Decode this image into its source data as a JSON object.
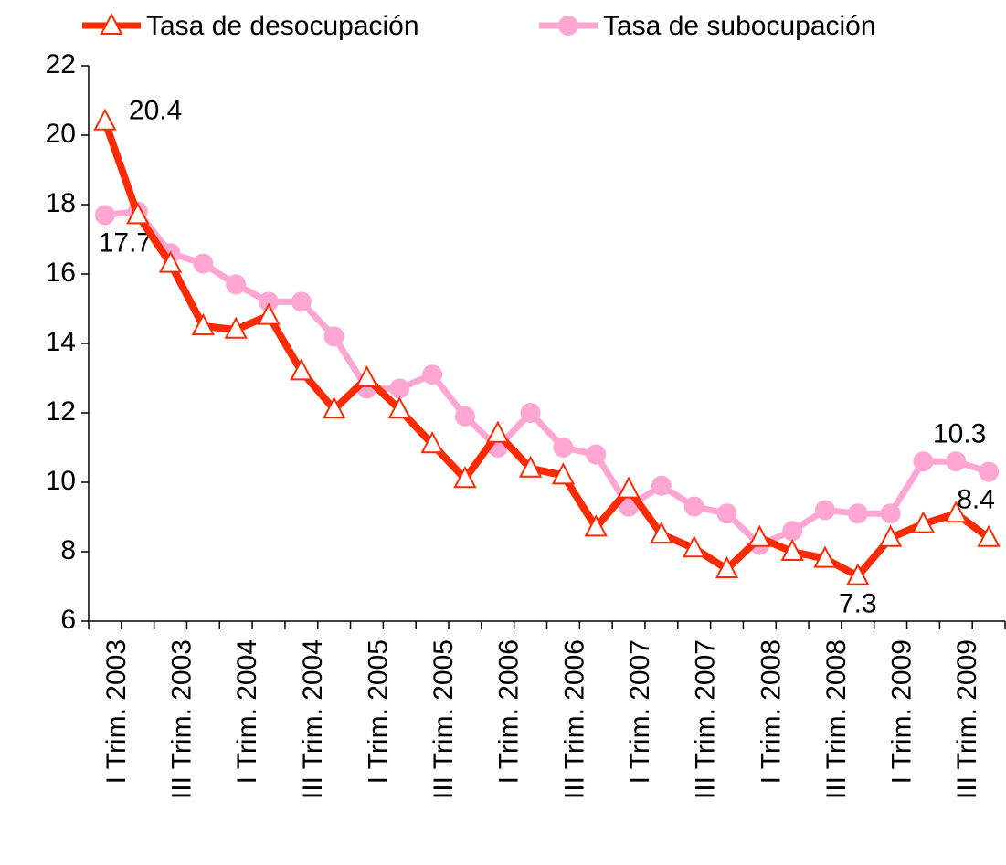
{
  "chart_data": {
    "type": "line",
    "categories": [
      "I Trim. 2003",
      null,
      "III Trim. 2003",
      null,
      "I Trim. 2004",
      null,
      "III Trim. 2004",
      null,
      "I Trim. 2005",
      null,
      "III Trim. 2005",
      null,
      "I Trim. 2006",
      null,
      "III Trim. 2006",
      null,
      "I Trim. 2007",
      null,
      "III Trim. 2007",
      null,
      "I Trim. 2008",
      null,
      "III Trim. 2008",
      null,
      "I Trim. 2009",
      null,
      "III Trim. 2009",
      null
    ],
    "series": [
      {
        "name": "Tasa de desocupación",
        "color": "#ff2a00",
        "marker": "triangle",
        "values": [
          20.4,
          17.7,
          16.3,
          14.5,
          14.4,
          14.8,
          13.2,
          12.1,
          13.0,
          12.1,
          11.1,
          10.1,
          11.4,
          10.4,
          10.2,
          8.7,
          9.8,
          8.5,
          8.1,
          7.5,
          8.4,
          8.0,
          7.8,
          7.3,
          8.4,
          8.8,
          9.1,
          8.4
        ],
        "data_labels": [
          0,
          23,
          27
        ]
      },
      {
        "name": "Tasa de subocupación",
        "color": "#ffa6d2",
        "marker": "circle",
        "values": [
          17.7,
          17.8,
          16.6,
          16.3,
          15.7,
          15.2,
          15.2,
          14.2,
          12.7,
          12.7,
          13.1,
          11.9,
          11.0,
          12.0,
          11.0,
          10.8,
          9.3,
          9.9,
          9.3,
          9.1,
          8.2,
          8.6,
          9.2,
          9.1,
          9.1,
          10.6,
          10.6,
          10.3
        ],
        "data_labels": [
          0,
          27
        ]
      }
    ],
    "ylim": [
      6,
      22
    ],
    "yticks": [
      6,
      8,
      10,
      12,
      14,
      16,
      18,
      20,
      22
    ],
    "grid": false
  }
}
